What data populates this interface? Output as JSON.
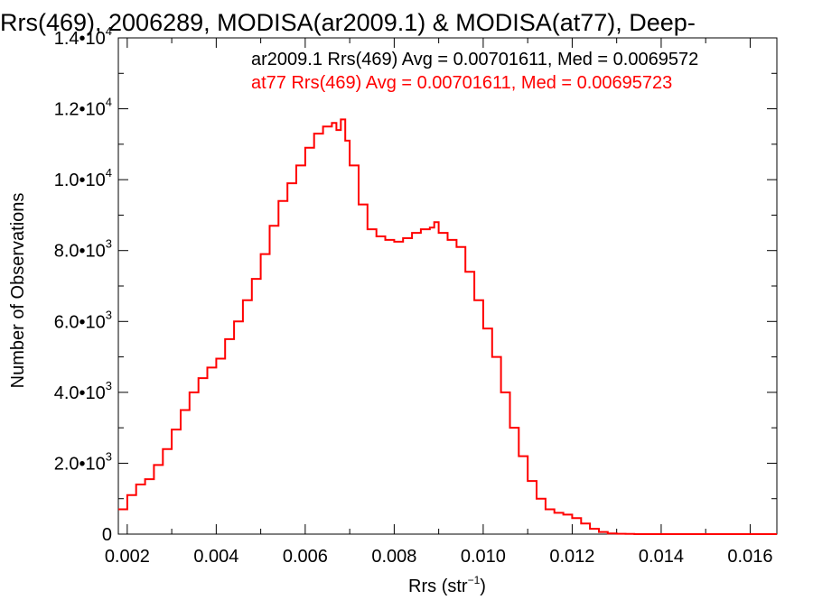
{
  "chart_data": {
    "type": "line",
    "title": "Rrs(469), 2006289, MODISA(ar2009.1) & MODISA(at77), Deep-",
    "xlabel": "Rrs (str",
    "xlabel_sup": "−1",
    "xlabel_end": ")",
    "ylabel": "Number of Observations",
    "xlim": [
      0.0018,
      0.0166
    ],
    "ylim": [
      0,
      14000
    ],
    "grid": false,
    "x_ticks": [
      {
        "value": 0.002,
        "label": "0.002"
      },
      {
        "value": 0.004,
        "label": "0.004"
      },
      {
        "value": 0.006,
        "label": "0.006"
      },
      {
        "value": 0.008,
        "label": "0.008"
      },
      {
        "value": 0.01,
        "label": "0.010"
      },
      {
        "value": 0.012,
        "label": "0.012"
      },
      {
        "value": 0.014,
        "label": "0.014"
      },
      {
        "value": 0.016,
        "label": "0.016"
      }
    ],
    "y_ticks": [
      {
        "value": 0,
        "mantissa": "0",
        "exp": ""
      },
      {
        "value": 2000,
        "mantissa": "2.0•10",
        "exp": "3"
      },
      {
        "value": 4000,
        "mantissa": "4.0•10",
        "exp": "3"
      },
      {
        "value": 6000,
        "mantissa": "6.0•10",
        "exp": "3"
      },
      {
        "value": 8000,
        "mantissa": "8.0•10",
        "exp": "3"
      },
      {
        "value": 10000,
        "mantissa": "1.0•10",
        "exp": "4"
      },
      {
        "value": 12000,
        "mantissa": "1.2•10",
        "exp": "4"
      },
      {
        "value": 14000,
        "mantissa": "1.4•10",
        "exp": "4"
      }
    ],
    "annotations": [
      {
        "text": "ar2009.1 Rrs(469) Avg = 0.00701611, Med = 0.0069572",
        "color": "#000000"
      },
      {
        "text": "at77 Rrs(469) Avg = 0.00701611, Med = 0.00695723",
        "color": "#ff0000"
      }
    ],
    "series": [
      {
        "color": "#ff0000",
        "style": "step",
        "x": [
          0.0018,
          0.002,
          0.0022,
          0.0024,
          0.0026,
          0.0028,
          0.003,
          0.0032,
          0.0034,
          0.0036,
          0.0038,
          0.004,
          0.0042,
          0.0044,
          0.0046,
          0.0048,
          0.005,
          0.0052,
          0.0054,
          0.0056,
          0.0058,
          0.006,
          0.0062,
          0.0064,
          0.0066,
          0.0067,
          0.0068,
          0.0069,
          0.007,
          0.0072,
          0.0074,
          0.0076,
          0.0078,
          0.008,
          0.0082,
          0.0084,
          0.0086,
          0.0088,
          0.0089,
          0.009,
          0.0092,
          0.0094,
          0.0096,
          0.0098,
          0.01,
          0.0102,
          0.0104,
          0.0106,
          0.0108,
          0.011,
          0.0112,
          0.0114,
          0.0116,
          0.0118,
          0.012,
          0.0122,
          0.0124,
          0.0126,
          0.0128,
          0.013,
          0.0132,
          0.0134,
          0.0136,
          0.0138,
          0.014,
          0.0145,
          0.015,
          0.0166
        ],
        "values": [
          700,
          1100,
          1400,
          1550,
          1950,
          2400,
          2950,
          3500,
          4000,
          4400,
          4700,
          4950,
          5500,
          6000,
          6600,
          7200,
          7900,
          8700,
          9400,
          9900,
          10400,
          10900,
          11300,
          11500,
          11600,
          11400,
          11700,
          11100,
          10400,
          9300,
          8600,
          8400,
          8300,
          8250,
          8350,
          8500,
          8600,
          8650,
          8800,
          8500,
          8300,
          8100,
          7400,
          6600,
          5800,
          5000,
          4000,
          3000,
          2200,
          1500,
          1000,
          700,
          600,
          550,
          450,
          300,
          150,
          60,
          20,
          10,
          5,
          0,
          0,
          0,
          0,
          0,
          0,
          0
        ]
      }
    ]
  }
}
